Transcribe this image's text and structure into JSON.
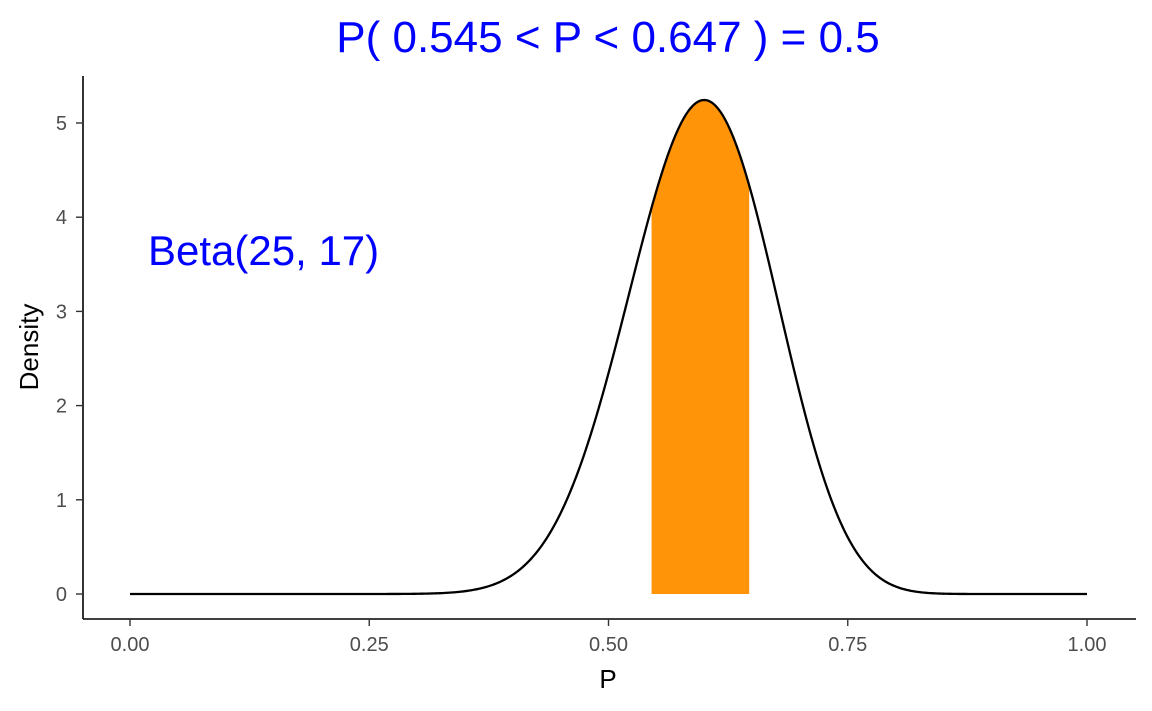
{
  "chart_data": {
    "type": "area",
    "title": "P( 0.545 < P <  0.647 ) = 0.5",
    "xlabel": "P",
    "ylabel": "Density",
    "xlim": [
      0,
      1
    ],
    "ylim": [
      -0.25,
      5.5
    ],
    "x_ticks": [
      0.0,
      0.25,
      0.5,
      0.75,
      1.0
    ],
    "x_tick_labels": [
      "0.00",
      "0.25",
      "0.50",
      "0.75",
      "1.00"
    ],
    "y_ticks": [
      0,
      1,
      2,
      3,
      4,
      5
    ],
    "y_tick_labels": [
      "0",
      "1",
      "2",
      "3",
      "4",
      "5"
    ],
    "grid": false,
    "distribution": {
      "name": "Beta",
      "alpha": 25,
      "beta": 17
    },
    "annotation": "Beta(25, 17)",
    "shaded_interval": {
      "lower": 0.545,
      "upper": 0.647,
      "probability": 0.5
    },
    "colors": {
      "title": "#0000ff",
      "annotation": "#0000ff",
      "shade": "#ff9409",
      "curve": "#000000"
    }
  }
}
